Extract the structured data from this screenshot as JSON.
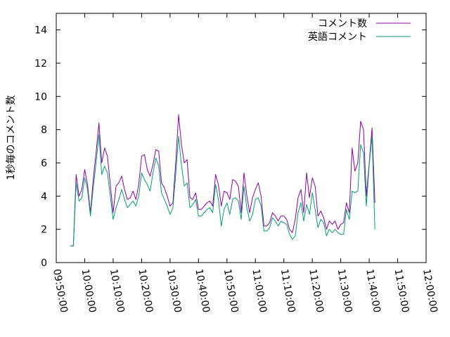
{
  "chart_data": {
    "type": "line",
    "title": "",
    "xlabel": "",
    "ylabel": "1秒毎のコメント数",
    "xlim": [
      "09:50:00",
      "12:00:00"
    ],
    "ylim": [
      0,
      15
    ],
    "grid": false,
    "legend_position": "top-right",
    "x_ticks": [
      "09:50:00",
      "10:00:00",
      "10:10:00",
      "10:20:00",
      "10:30:00",
      "10:40:00",
      "10:50:00",
      "11:00:00",
      "11:10:00",
      "11:20:00",
      "11:30:00",
      "11:40:00",
      "11:50:00",
      "12:00:00"
    ],
    "y_ticks": [
      0,
      2,
      4,
      6,
      8,
      10,
      12,
      14
    ],
    "series": [
      {
        "name": "コメント数",
        "color": "#8b00a8",
        "points": [
          [
            "09:55:00",
            1.0
          ],
          [
            "09:56:00",
            1.0
          ],
          [
            "09:57:00",
            5.3
          ],
          [
            "09:58:00",
            4.0
          ],
          [
            "09:59:00",
            4.4
          ],
          [
            "10:00:00",
            5.6
          ],
          [
            "10:01:00",
            4.7
          ],
          [
            "10:02:00",
            3.0
          ],
          [
            "10:03:00",
            5.0
          ],
          [
            "10:04:00",
            6.6
          ],
          [
            "10:05:00",
            8.4
          ],
          [
            "10:06:00",
            6.0
          ],
          [
            "10:07:00",
            6.9
          ],
          [
            "10:08:00",
            6.4
          ],
          [
            "10:10:00",
            3.0
          ],
          [
            "10:11:00",
            4.6
          ],
          [
            "10:12:00",
            4.8
          ],
          [
            "10:13:00",
            5.2
          ],
          [
            "10:14:00",
            4.4
          ],
          [
            "10:15:00",
            3.8
          ],
          [
            "10:16:00",
            3.9
          ],
          [
            "10:17:00",
            4.3
          ],
          [
            "10:18:00",
            3.8
          ],
          [
            "10:19:00",
            4.7
          ],
          [
            "10:20:00",
            6.4
          ],
          [
            "10:21:00",
            6.5
          ],
          [
            "10:22:00",
            5.6
          ],
          [
            "10:23:00",
            5.2
          ],
          [
            "10:24:00",
            5.9
          ],
          [
            "10:25:00",
            6.8
          ],
          [
            "10:26:00",
            6.7
          ],
          [
            "10:27:00",
            4.8
          ],
          [
            "10:28:00",
            4.5
          ],
          [
            "10:29:00",
            4.0
          ],
          [
            "10:30:00",
            3.4
          ],
          [
            "10:31:00",
            3.6
          ],
          [
            "10:32:00",
            6.0
          ],
          [
            "10:33:00",
            8.9
          ],
          [
            "10:34:00",
            7.1
          ],
          [
            "10:35:00",
            6.0
          ],
          [
            "10:36:00",
            6.2
          ],
          [
            "10:37:00",
            3.9
          ],
          [
            "10:38:00",
            3.8
          ],
          [
            "10:39:00",
            4.2
          ],
          [
            "10:40:00",
            3.2
          ],
          [
            "10:41:00",
            3.2
          ],
          [
            "10:42:00",
            3.4
          ],
          [
            "10:43:00",
            3.6
          ],
          [
            "10:44:00",
            3.7
          ],
          [
            "10:45:00",
            3.4
          ],
          [
            "10:46:00",
            5.3
          ],
          [
            "10:47:00",
            4.7
          ],
          [
            "10:48:00",
            3.4
          ],
          [
            "10:49:00",
            4.3
          ],
          [
            "10:50:00",
            4.2
          ],
          [
            "10:51:00",
            3.8
          ],
          [
            "10:52:00",
            5.0
          ],
          [
            "10:53:00",
            4.9
          ],
          [
            "10:54:00",
            4.6
          ],
          [
            "10:55:00",
            3.0
          ],
          [
            "10:56:00",
            5.4
          ],
          [
            "10:57:00",
            4.0
          ],
          [
            "10:58:00",
            3.0
          ],
          [
            "10:59:00",
            3.9
          ],
          [
            "11:00:00",
            4.4
          ],
          [
            "11:01:00",
            4.8
          ],
          [
            "11:02:00",
            4.0
          ],
          [
            "11:03:00",
            2.2
          ],
          [
            "11:04:00",
            2.2
          ],
          [
            "11:05:00",
            2.4
          ],
          [
            "11:06:00",
            3.0
          ],
          [
            "11:07:00",
            2.8
          ],
          [
            "11:08:00",
            2.5
          ],
          [
            "11:09:00",
            2.8
          ],
          [
            "11:10:00",
            2.8
          ],
          [
            "11:11:00",
            2.6
          ],
          [
            "11:12:00",
            2.0
          ],
          [
            "11:13:00",
            1.8
          ],
          [
            "11:14:00",
            2.6
          ],
          [
            "11:15:00",
            3.9
          ],
          [
            "11:16:00",
            4.4
          ],
          [
            "11:17:00",
            3.0
          ],
          [
            "11:18:00",
            5.4
          ],
          [
            "11:19:00",
            3.9
          ],
          [
            "11:20:00",
            5.1
          ],
          [
            "11:21:00",
            4.6
          ],
          [
            "11:22:00",
            2.8
          ],
          [
            "11:23:00",
            3.1
          ],
          [
            "11:24:00",
            2.7
          ],
          [
            "11:25:00",
            2.0
          ],
          [
            "11:26:00",
            2.5
          ],
          [
            "11:27:00",
            2.3
          ],
          [
            "11:28:00",
            2.5
          ],
          [
            "11:29:00",
            2.0
          ],
          [
            "11:30:00",
            2.3
          ],
          [
            "11:31:00",
            2.4
          ],
          [
            "11:32:00",
            3.6
          ],
          [
            "11:33:00",
            3.0
          ],
          [
            "11:34:00",
            6.9
          ],
          [
            "11:35:00",
            5.5
          ],
          [
            "11:36:00",
            6.0
          ],
          [
            "11:37:00",
            8.5
          ],
          [
            "11:38:00",
            8.0
          ],
          [
            "11:39:00",
            4.0
          ],
          [
            "11:40:00",
            6.0
          ],
          [
            "11:41:00",
            8.1
          ],
          [
            "11:42:00",
            3.6
          ]
        ]
      },
      {
        "name": "英語コメント",
        "color": "#009e73",
        "points": [
          [
            "09:55:00",
            1.0
          ],
          [
            "09:56:00",
            1.0
          ],
          [
            "09:57:00",
            4.8
          ],
          [
            "09:58:00",
            3.7
          ],
          [
            "09:59:00",
            3.9
          ],
          [
            "10:00:00",
            5.1
          ],
          [
            "10:01:00",
            4.4
          ],
          [
            "10:02:00",
            2.8
          ],
          [
            "10:03:00",
            4.5
          ],
          [
            "10:04:00",
            6.0
          ],
          [
            "10:05:00",
            7.7
          ],
          [
            "10:06:00",
            5.3
          ],
          [
            "10:07:00",
            5.8
          ],
          [
            "10:08:00",
            5.4
          ],
          [
            "10:10:00",
            2.6
          ],
          [
            "10:11:00",
            3.3
          ],
          [
            "10:12:00",
            3.8
          ],
          [
            "10:13:00",
            4.4
          ],
          [
            "10:14:00",
            3.8
          ],
          [
            "10:15:00",
            3.3
          ],
          [
            "10:16:00",
            3.5
          ],
          [
            "10:17:00",
            3.7
          ],
          [
            "10:18:00",
            3.4
          ],
          [
            "10:19:00",
            4.0
          ],
          [
            "10:20:00",
            5.4
          ],
          [
            "10:21:00",
            5.0
          ],
          [
            "10:22:00",
            4.7
          ],
          [
            "10:23:00",
            4.3
          ],
          [
            "10:24:00",
            5.4
          ],
          [
            "10:25:00",
            6.3
          ],
          [
            "10:26:00",
            5.8
          ],
          [
            "10:27:00",
            4.2
          ],
          [
            "10:28:00",
            3.8
          ],
          [
            "10:29:00",
            3.4
          ],
          [
            "10:30:00",
            2.9
          ],
          [
            "10:31:00",
            3.3
          ],
          [
            "10:32:00",
            5.3
          ],
          [
            "10:33:00",
            7.6
          ],
          [
            "10:34:00",
            5.9
          ],
          [
            "10:35:00",
            4.6
          ],
          [
            "10:36:00",
            4.8
          ],
          [
            "10:37:00",
            3.3
          ],
          [
            "10:38:00",
            3.5
          ],
          [
            "10:39:00",
            3.8
          ],
          [
            "10:40:00",
            2.8
          ],
          [
            "10:41:00",
            2.8
          ],
          [
            "10:42:00",
            3.0
          ],
          [
            "10:43:00",
            3.2
          ],
          [
            "10:44:00",
            3.3
          ],
          [
            "10:45:00",
            3.0
          ],
          [
            "10:46:00",
            4.7
          ],
          [
            "10:47:00",
            3.8
          ],
          [
            "10:48:00",
            2.2
          ],
          [
            "10:49:00",
            3.2
          ],
          [
            "10:50:00",
            3.6
          ],
          [
            "10:51:00",
            2.9
          ],
          [
            "10:52:00",
            3.8
          ],
          [
            "10:53:00",
            3.9
          ],
          [
            "10:54:00",
            3.7
          ],
          [
            "10:55:00",
            2.6
          ],
          [
            "10:56:00",
            4.6
          ],
          [
            "10:57:00",
            3.3
          ],
          [
            "10:58:00",
            2.5
          ],
          [
            "10:59:00",
            2.9
          ],
          [
            "11:00:00",
            3.8
          ],
          [
            "11:01:00",
            3.9
          ],
          [
            "11:02:00",
            3.4
          ],
          [
            "11:03:00",
            1.9
          ],
          [
            "11:04:00",
            1.9
          ],
          [
            "11:05:00",
            2.1
          ],
          [
            "11:06:00",
            2.7
          ],
          [
            "11:07:00",
            2.5
          ],
          [
            "11:08:00",
            2.2
          ],
          [
            "11:09:00",
            2.5
          ],
          [
            "11:10:00",
            2.4
          ],
          [
            "11:11:00",
            2.3
          ],
          [
            "11:12:00",
            1.7
          ],
          [
            "11:13:00",
            1.4
          ],
          [
            "11:14:00",
            1.6
          ],
          [
            "11:15:00",
            3.0
          ],
          [
            "11:16:00",
            3.6
          ],
          [
            "11:17:00",
            2.5
          ],
          [
            "11:18:00",
            3.5
          ],
          [
            "11:19:00",
            2.9
          ],
          [
            "11:20:00",
            4.2
          ],
          [
            "11:21:00",
            3.2
          ],
          [
            "11:22:00",
            2.1
          ],
          [
            "11:23:00",
            2.6
          ],
          [
            "11:24:00",
            2.4
          ],
          [
            "11:25:00",
            1.6
          ],
          [
            "11:26:00",
            2.0
          ],
          [
            "11:27:00",
            1.8
          ],
          [
            "11:28:00",
            2.0
          ],
          [
            "11:29:00",
            1.8
          ],
          [
            "11:30:00",
            1.7
          ],
          [
            "11:31:00",
            1.7
          ],
          [
            "11:32:00",
            3.2
          ],
          [
            "11:33:00",
            2.6
          ],
          [
            "11:34:00",
            4.3
          ],
          [
            "11:35:00",
            4.2
          ],
          [
            "11:36:00",
            4.3
          ],
          [
            "11:37:00",
            7.1
          ],
          [
            "11:38:00",
            6.6
          ],
          [
            "11:39:00",
            3.4
          ],
          [
            "11:40:00",
            5.9
          ],
          [
            "11:41:00",
            7.6
          ],
          [
            "11:42:00",
            2.0
          ]
        ]
      }
    ]
  }
}
